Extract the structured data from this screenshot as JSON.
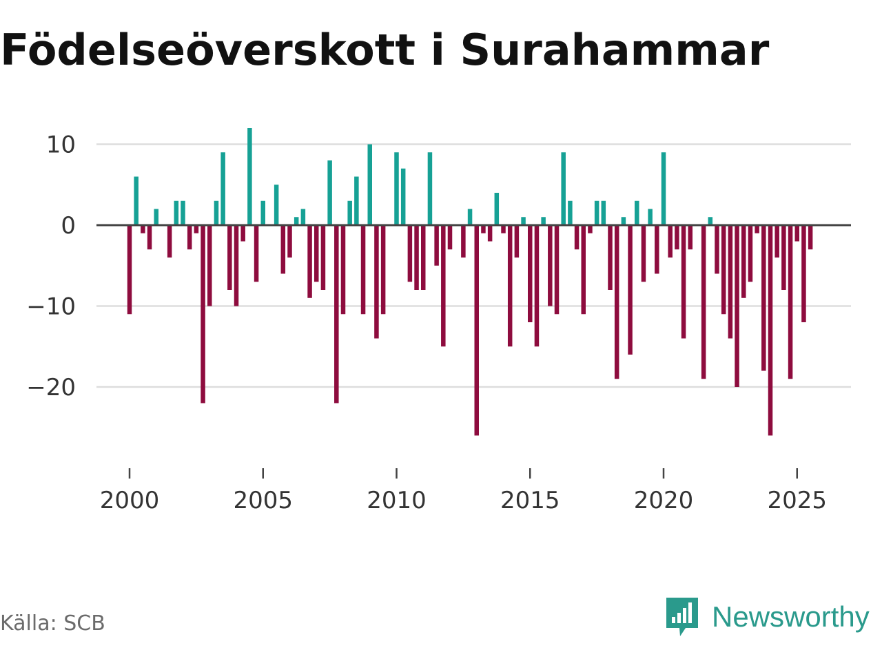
{
  "colors": {
    "positive": "#16a195",
    "negative": "#8e0c3e",
    "grid": "#dddddd",
    "zero_line": "#444444",
    "brand": "#2a9a8c"
  },
  "footer": {
    "source": "Källa: SCB",
    "brand": "Newsworthy",
    "brand_icon": "newsworthy-chart-bubble-icon"
  },
  "chart_data": {
    "type": "bar",
    "title": "Födelseöverskott i Surahammar",
    "xlabel": "",
    "ylabel": "",
    "ylim": [
      -26,
      12
    ],
    "y_ticks": [
      10,
      0,
      -10,
      -20
    ],
    "y_tick_labels": [
      "10",
      "0",
      "−10",
      "−20"
    ],
    "x_ticks": [
      2000,
      2005,
      2010,
      2015,
      2020,
      2025
    ],
    "x_tick_labels": [
      "2000",
      "2005",
      "2010",
      "2015",
      "2020",
      "2025"
    ],
    "grid": true,
    "x_start": 2000.0,
    "x_step": 0.25,
    "values": [
      -11,
      6,
      -1,
      -3,
      2,
      0,
      -4,
      3,
      3,
      -3,
      -1,
      -22,
      -10,
      3,
      9,
      -8,
      -10,
      -2,
      12,
      -7,
      3,
      0,
      5,
      -6,
      -4,
      1,
      2,
      -9,
      -7,
      -8,
      8,
      -22,
      -11,
      3,
      6,
      -11,
      10,
      -14,
      -11,
      0,
      9,
      7,
      -7,
      -8,
      -8,
      9,
      -5,
      -15,
      -3,
      0,
      -4,
      2,
      -26,
      -1,
      -2,
      4,
      -1,
      -15,
      -4,
      1,
      -12,
      -15,
      1,
      -10,
      -11,
      9,
      3,
      -3,
      -11,
      -1,
      3,
      3,
      -8,
      -19,
      1,
      -16,
      3,
      -7,
      2,
      -6,
      9,
      -4,
      -3,
      -14,
      -3,
      0,
      -19,
      1,
      -6,
      -11,
      -14,
      -20,
      -9,
      -7,
      -1,
      -18,
      -26,
      -4,
      -8,
      -19,
      -2,
      -12,
      -3
    ]
  }
}
